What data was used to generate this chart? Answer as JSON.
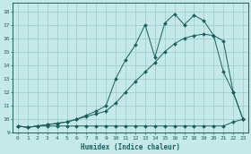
{
  "title": "",
  "xlabel": "Humidex (Indice chaleur)",
  "bg_color": "#c5e8e8",
  "grid_color": "#9fcfcf",
  "line_color": "#1a5f5f",
  "xlim": [
    -0.5,
    23.5
  ],
  "ylim": [
    9.0,
    18.6
  ],
  "yticks": [
    9,
    10,
    11,
    12,
    13,
    14,
    15,
    16,
    17,
    18
  ],
  "xticks": [
    0,
    1,
    2,
    3,
    4,
    5,
    6,
    7,
    8,
    9,
    10,
    11,
    12,
    13,
    14,
    15,
    16,
    17,
    18,
    19,
    20,
    21,
    22,
    23
  ],
  "series1_x": [
    0,
    1,
    2,
    3,
    4,
    5,
    6,
    7,
    8,
    9,
    10,
    11,
    12,
    13,
    14,
    15,
    16,
    17,
    18,
    19,
    20,
    21,
    22,
    23
  ],
  "series1_y": [
    9.5,
    9.4,
    9.5,
    9.5,
    9.5,
    9.5,
    9.5,
    9.5,
    9.5,
    9.5,
    9.5,
    9.5,
    9.5,
    9.5,
    9.5,
    9.5,
    9.5,
    9.5,
    9.5,
    9.5,
    9.5,
    9.5,
    9.8,
    10.0
  ],
  "series2_x": [
    0,
    1,
    2,
    3,
    4,
    5,
    6,
    7,
    8,
    9,
    10,
    11,
    12,
    13,
    14,
    15,
    16,
    17,
    18,
    19,
    20,
    21,
    22,
    23
  ],
  "series2_y": [
    9.5,
    9.4,
    9.5,
    9.6,
    9.7,
    9.8,
    10.0,
    10.2,
    10.4,
    10.6,
    11.2,
    12.0,
    12.8,
    13.5,
    14.2,
    15.0,
    15.6,
    16.0,
    16.2,
    16.3,
    16.2,
    15.8,
    12.0,
    10.0
  ],
  "series3_x": [
    0,
    1,
    2,
    3,
    4,
    5,
    6,
    7,
    8,
    9,
    10,
    11,
    12,
    13,
    14,
    15,
    16,
    17,
    18,
    19,
    20,
    21,
    22,
    23
  ],
  "series3_y": [
    9.5,
    9.4,
    9.5,
    9.6,
    9.7,
    9.8,
    10.0,
    10.3,
    10.6,
    11.0,
    13.0,
    14.4,
    15.5,
    17.0,
    14.6,
    17.1,
    17.8,
    17.0,
    17.7,
    17.3,
    16.2,
    13.5,
    12.0,
    10.0
  ]
}
